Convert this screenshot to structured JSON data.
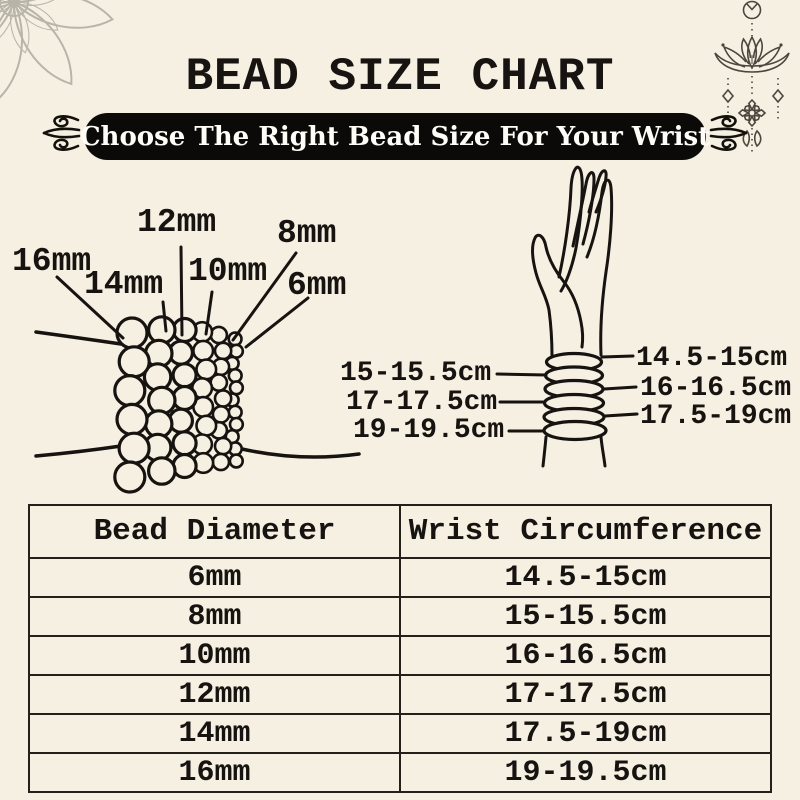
{
  "theme": {
    "background": "#f5f0e2",
    "ink": "#171310",
    "banner_background": "#0c0a08",
    "banner_text_color": "#fffdf8",
    "ornament_gray": "#b9b4a9",
    "lotus_gray": "#4c473e"
  },
  "header": {
    "title": "BEAD SIZE CHART",
    "banner": "Choose The Right Bead Size For Your Wrist"
  },
  "bead_diagram": {
    "labels": [
      "16mm",
      "14mm",
      "12mm",
      "10mm",
      "8mm",
      "6mm"
    ],
    "sizes_mm": [
      16,
      14,
      12,
      10,
      8,
      6
    ]
  },
  "wrist_diagram": {
    "left_labels": [
      "15-15.5cm",
      "17-17.5cm",
      "19-19.5cm"
    ],
    "right_labels": [
      "14.5-15cm",
      "16-16.5cm",
      "17.5-19cm"
    ]
  },
  "chart_data": {
    "type": "table",
    "columns": [
      "Bead Diameter",
      "Wrist Circumference"
    ],
    "rows": [
      [
        "6mm",
        "14.5-15cm"
      ],
      [
        "8mm",
        "15-15.5cm"
      ],
      [
        "10mm",
        "16-16.5cm"
      ],
      [
        "12mm",
        "17-17.5cm"
      ],
      [
        "14mm",
        "17.5-19cm"
      ],
      [
        "16mm",
        "19-19.5cm"
      ]
    ]
  }
}
